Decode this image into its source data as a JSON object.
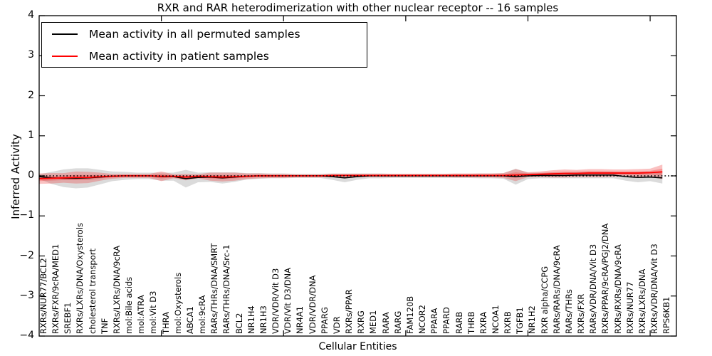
{
  "chart_data": {
    "type": "line",
    "title": "RXR and RAR heterodimerization with other nuclear receptor -- 16 samples",
    "xlabel": "Cellular Entities",
    "ylabel": "Inferred Activity",
    "ylim": [
      -4,
      4
    ],
    "yticks": [
      4,
      3,
      2,
      1,
      0,
      -1,
      -2,
      -3,
      -4
    ],
    "ytick_labels": [
      "4",
      "3",
      "2",
      "1",
      "0",
      "−1",
      "−2",
      "−3",
      "−4"
    ],
    "xticks_data_positions": [
      10,
      20,
      30,
      40,
      50
    ],
    "grid": false,
    "legend_position": "upper-left",
    "zero_line": {
      "style": "dotted",
      "color": "#000000",
      "value": 0
    },
    "categories": [
      "RXRs/NUR77/BCL2",
      "RXRs/FXR/9cRA/MED1",
      "SREBF1",
      "RXRs/LXRs/DNA/Oxysterols",
      "cholesterol transport",
      "TNF",
      "RXRs/LXRs/DNA/9cRA",
      "mol:Bile acids",
      "mol:ATRA",
      "mol:Vit D3",
      "THRA",
      "mol:Oxysterols",
      "ABCA1",
      "mol:9cRA",
      "RARs/THRs/DNA/SMRT",
      "RARs/THRs/DNA/Src-1",
      "BCL2",
      "NR1H4",
      "NR1H3",
      "VDR/VDR/Vit D3",
      "VDR/Vit D3/DNA",
      "NR4A1",
      "VDR/VDR/DNA",
      "PPARG",
      "VDR",
      "RXRs/PPAR",
      "RXRG",
      "MED1",
      "RARA",
      "RARG",
      "FAM120B",
      "NCOR2",
      "PPARA",
      "PPARD",
      "RARB",
      "THRB",
      "RXRA",
      "NCOA1",
      "RXRB",
      "TGFB1",
      "NR1H2",
      "RXR alpha/CCPG",
      "RARs/RARs/DNA/9cRA",
      "RARs/THRs",
      "RXRs/FXR",
      "RARs/VDR/DNA/Vit D3",
      "RXRs/PPAR/9cRA/PGJ2/DNA",
      "RXRs/RXRs/DNA/9cRA",
      "RXRs/NUR77",
      "RXRs/LXRs/DNA",
      "RXRs/VDR/DNA/Vit D3",
      "RPS6KB1"
    ],
    "series": [
      {
        "name": "Mean activity in all permuted samples",
        "color": "#000000",
        "values": [
          -0.02,
          -0.05,
          -0.06,
          -0.06,
          -0.05,
          -0.03,
          -0.01,
          0,
          0,
          0,
          -0.02,
          -0.02,
          -0.07,
          -0.04,
          -0.03,
          -0.05,
          -0.03,
          -0.01,
          0,
          0,
          0,
          0,
          0,
          0,
          -0.02,
          -0.05,
          -0.02,
          0,
          0,
          0,
          0,
          0,
          0,
          0,
          0,
          0,
          0,
          0,
          0,
          -0.02,
          0,
          0.01,
          0.01,
          0.01,
          0.02,
          0.02,
          0.02,
          0.02,
          -0.02,
          -0.04,
          -0.03,
          -0.05
        ]
      },
      {
        "name": "Mean activity in patient samples",
        "color": "#ff0000",
        "values": [
          -0.07,
          -0.06,
          -0.05,
          -0.04,
          -0.04,
          -0.02,
          -0.01,
          0,
          0,
          0,
          -0.01,
          -0.01,
          -0.03,
          -0.01,
          -0.02,
          -0.03,
          -0.02,
          -0.01,
          0,
          0,
          0,
          0,
          0,
          0,
          0.01,
          0.01,
          0.01,
          0.01,
          0.01,
          0.01,
          0.01,
          0.01,
          0.01,
          0.01,
          0.01,
          0.01,
          0.01,
          0.01,
          0.01,
          0.02,
          0.03,
          0.04,
          0.05,
          0.06,
          0.06,
          0.07,
          0.07,
          0.07,
          0.07,
          0.07,
          0.08,
          0.1
        ]
      }
    ],
    "bands": [
      {
        "name": "permuted-samples-band",
        "color": "#999999",
        "opacity": 0.35,
        "upper": [
          0.04,
          0.1,
          0.16,
          0.19,
          0.19,
          0.15,
          0.11,
          0.1,
          0.08,
          0.08,
          0.08,
          0.08,
          0.15,
          0.08,
          0.09,
          0.09,
          0.09,
          0.07,
          0.07,
          0.06,
          0.06,
          0.05,
          0.05,
          0.05,
          0.06,
          0.06,
          0.06,
          0.06,
          0.06,
          0.05,
          0.05,
          0.05,
          0.05,
          0.05,
          0.05,
          0.05,
          0.06,
          0.06,
          0.07,
          0.18,
          0.08,
          0.08,
          0.08,
          0.08,
          0.1,
          0.1,
          0.1,
          0.1,
          0.08,
          0.08,
          0.07,
          0.09
        ],
        "lower": [
          -0.08,
          -0.2,
          -0.28,
          -0.31,
          -0.29,
          -0.21,
          -0.13,
          -0.1,
          -0.08,
          -0.08,
          -0.12,
          -0.12,
          -0.29,
          -0.16,
          -0.15,
          -0.19,
          -0.15,
          -0.09,
          -0.07,
          -0.06,
          -0.06,
          -0.05,
          -0.05,
          -0.05,
          -0.1,
          -0.16,
          -0.1,
          -0.06,
          -0.06,
          -0.05,
          -0.05,
          -0.05,
          -0.05,
          -0.05,
          -0.05,
          -0.05,
          -0.06,
          -0.06,
          -0.07,
          -0.22,
          -0.08,
          -0.06,
          -0.06,
          -0.06,
          -0.06,
          -0.06,
          -0.06,
          -0.06,
          -0.12,
          -0.16,
          -0.13,
          -0.19
        ]
      },
      {
        "name": "patient-samples-band",
        "color": "#ee3333",
        "opacity": 0.3,
        "upper": [
          0.06,
          0.07,
          0.07,
          0.11,
          0.1,
          0.08,
          0.05,
          0.05,
          0.05,
          0.05,
          0.11,
          0.04,
          0.05,
          0.04,
          0.08,
          0.08,
          0.08,
          0.06,
          0.06,
          0.05,
          0.05,
          0.04,
          0.04,
          0.04,
          0.05,
          0.05,
          0.05,
          0.05,
          0.05,
          0.05,
          0.05,
          0.05,
          0.05,
          0.05,
          0.06,
          0.06,
          0.06,
          0.06,
          0.07,
          0.17,
          0.09,
          0.11,
          0.14,
          0.16,
          0.15,
          0.17,
          0.17,
          0.16,
          0.16,
          0.17,
          0.18,
          0.28
        ],
        "lower": [
          -0.2,
          -0.19,
          -0.17,
          -0.19,
          -0.18,
          -0.12,
          -0.07,
          -0.05,
          -0.05,
          -0.05,
          -0.13,
          -0.06,
          -0.11,
          -0.06,
          -0.12,
          -0.14,
          -0.12,
          -0.08,
          -0.06,
          -0.05,
          -0.05,
          -0.04,
          -0.04,
          -0.04,
          -0.03,
          -0.03,
          -0.03,
          -0.03,
          -0.03,
          -0.03,
          -0.03,
          -0.03,
          -0.03,
          -0.03,
          -0.04,
          -0.04,
          -0.04,
          -0.04,
          -0.05,
          -0.13,
          -0.03,
          -0.03,
          -0.04,
          -0.04,
          -0.03,
          -0.03,
          -0.03,
          -0.02,
          -0.02,
          -0.03,
          -0.02,
          -0.08
        ]
      }
    ]
  }
}
